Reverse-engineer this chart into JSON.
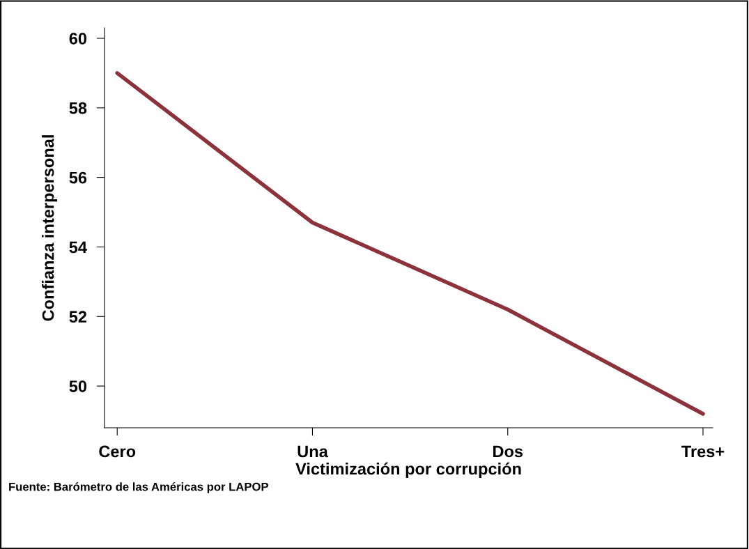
{
  "chart_data": {
    "type": "line",
    "xlabel": "Victimización por corrupción",
    "ylabel": "Confianza interpersonal",
    "categories": [
      "Cero",
      "Una",
      "Dos",
      "Tres+"
    ],
    "series": [
      {
        "color": "#8b323b",
        "values": [
          59.0,
          54.7,
          52.2,
          49.2
        ]
      }
    ],
    "ylim": [
      48.8,
      60.3
    ],
    "yticks": [
      50,
      52,
      54,
      56,
      58,
      60
    ],
    "grid": false,
    "marker": "none",
    "line_style": "solid",
    "annotations": [
      "Fuente: Barómetro de las Américas por LAPOP"
    ]
  }
}
